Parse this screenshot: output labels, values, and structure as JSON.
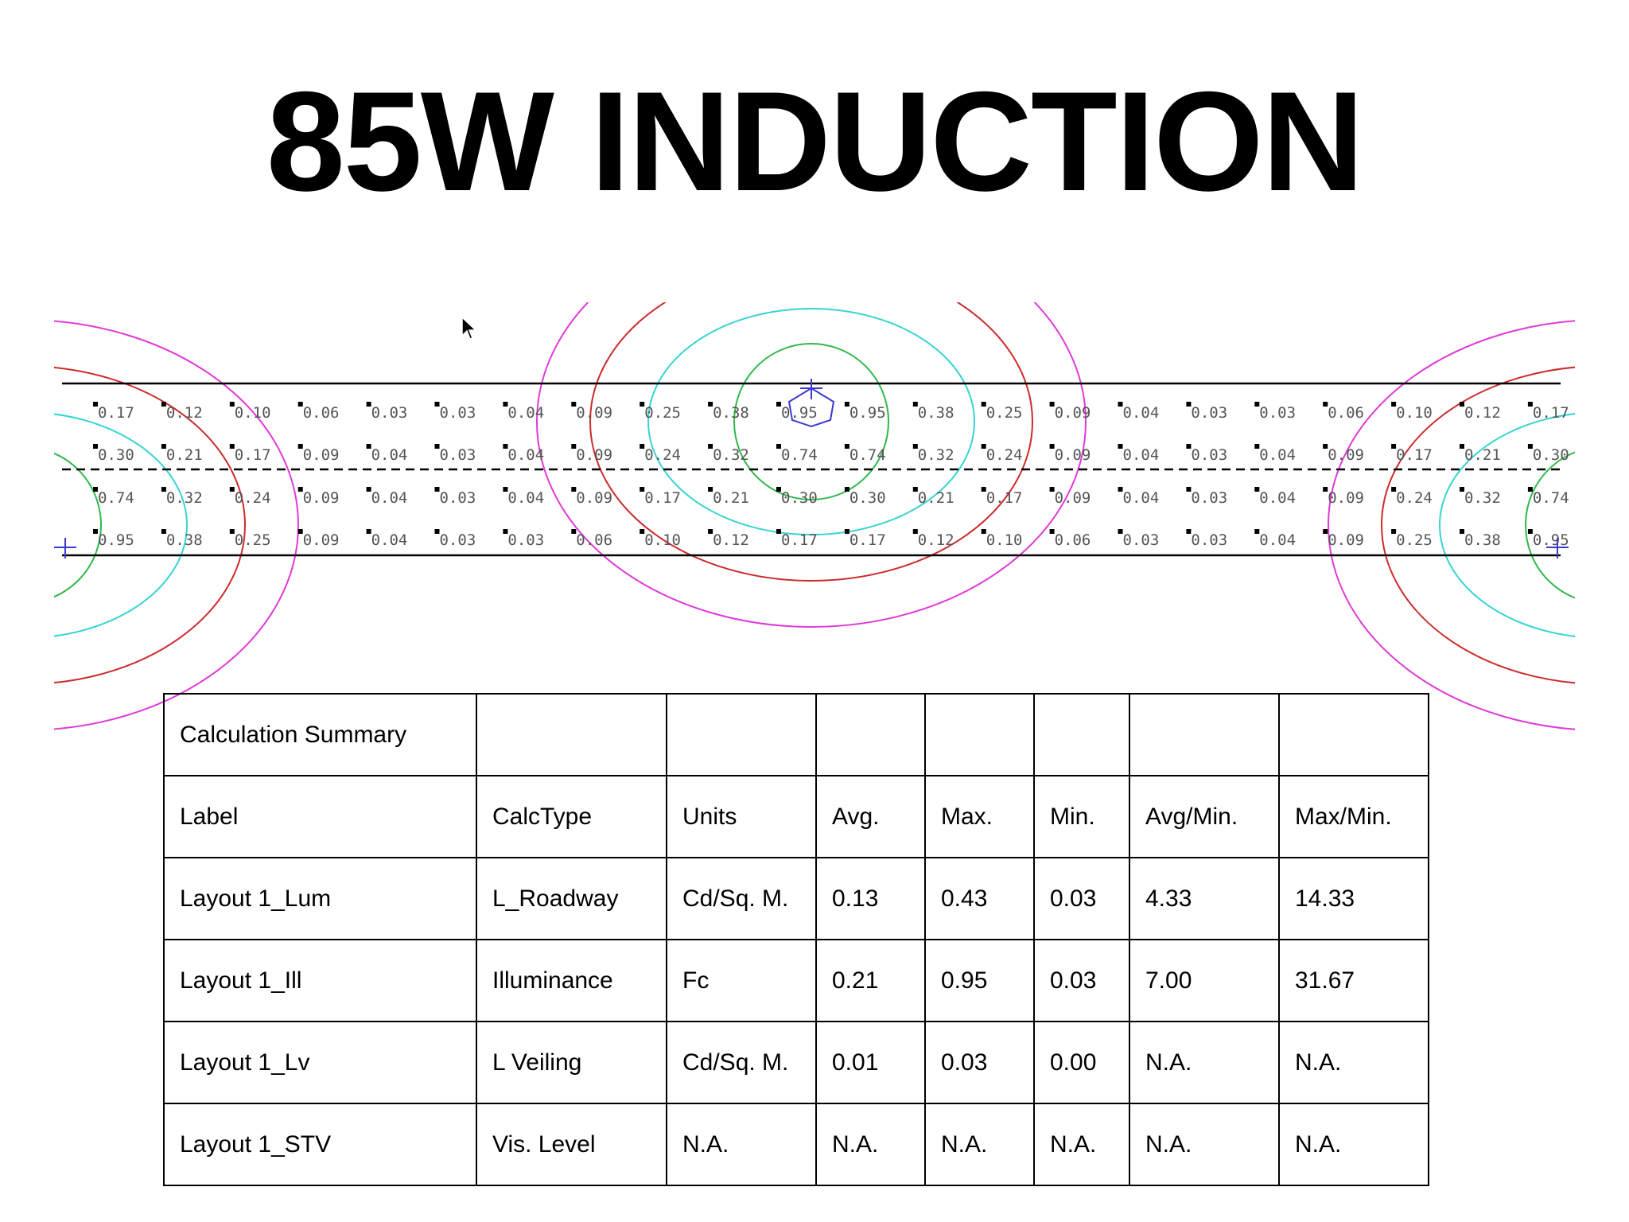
{
  "title": "85W INDUCTION",
  "colors": {
    "contour_outer": "#e03ad8",
    "contour_2": "#cc2b2b",
    "contour_3": "#37d3d3",
    "contour_4": "#2fb84a",
    "contour_inner": "#3a3ad0",
    "road_line": "#000000"
  },
  "grid_values": [
    [
      "0.17",
      "0.12",
      "0.10",
      "0.06",
      "0.03",
      "0.03",
      "0.04",
      "0.09",
      "0.25",
      "0.38",
      "0.95",
      "0.95",
      "0.38",
      "0.25",
      "0.09",
      "0.04",
      "0.03",
      "0.03",
      "0.06",
      "0.10",
      "0.12",
      "0.17"
    ],
    [
      "0.30",
      "0.21",
      "0.17",
      "0.09",
      "0.04",
      "0.03",
      "0.04",
      "0.09",
      "0.24",
      "0.32",
      "0.74",
      "0.74",
      "0.32",
      "0.24",
      "0.09",
      "0.04",
      "0.03",
      "0.04",
      "0.09",
      "0.17",
      "0.21",
      "0.30"
    ],
    [
      "0.74",
      "0.32",
      "0.24",
      "0.09",
      "0.04",
      "0.03",
      "0.04",
      "0.09",
      "0.17",
      "0.21",
      "0.30",
      "0.30",
      "0.21",
      "0.17",
      "0.09",
      "0.04",
      "0.03",
      "0.04",
      "0.09",
      "0.24",
      "0.32",
      "0.74"
    ],
    [
      "0.95",
      "0.38",
      "0.25",
      "0.09",
      "0.04",
      "0.03",
      "0.03",
      "0.06",
      "0.10",
      "0.12",
      "0.17",
      "0.17",
      "0.12",
      "0.10",
      "0.06",
      "0.03",
      "0.03",
      "0.04",
      "0.09",
      "0.25",
      "0.38",
      "0.95"
    ]
  ],
  "summary": {
    "caption": "Calculation Summary",
    "headers": [
      "Label",
      "CalcType",
      "Units",
      "Avg.",
      "Max.",
      "Min.",
      "Avg/Min.",
      "Max/Min."
    ],
    "rows": [
      [
        "Layout 1_Lum",
        "L_Roadway",
        "Cd/Sq. M.",
        "0.13",
        "0.43",
        "0.03",
        "4.33",
        "14.33"
      ],
      [
        "Layout  1_Ill",
        "Illuminance",
        "Fc",
        "0.21",
        "0.95",
        "0.03",
        "7.00",
        "31.67"
      ],
      [
        "Layout 1_Lv",
        "L Veiling",
        "Cd/Sq. M.",
        "0.01",
        "0.03",
        "0.00",
        "N.A.",
        "N.A."
      ],
      [
        "Layout 1_STV",
        "Vis. Level",
        "N.A.",
        "N.A.",
        "N.A.",
        "N.A.",
        "N.A.",
        "N.A."
      ]
    ]
  }
}
